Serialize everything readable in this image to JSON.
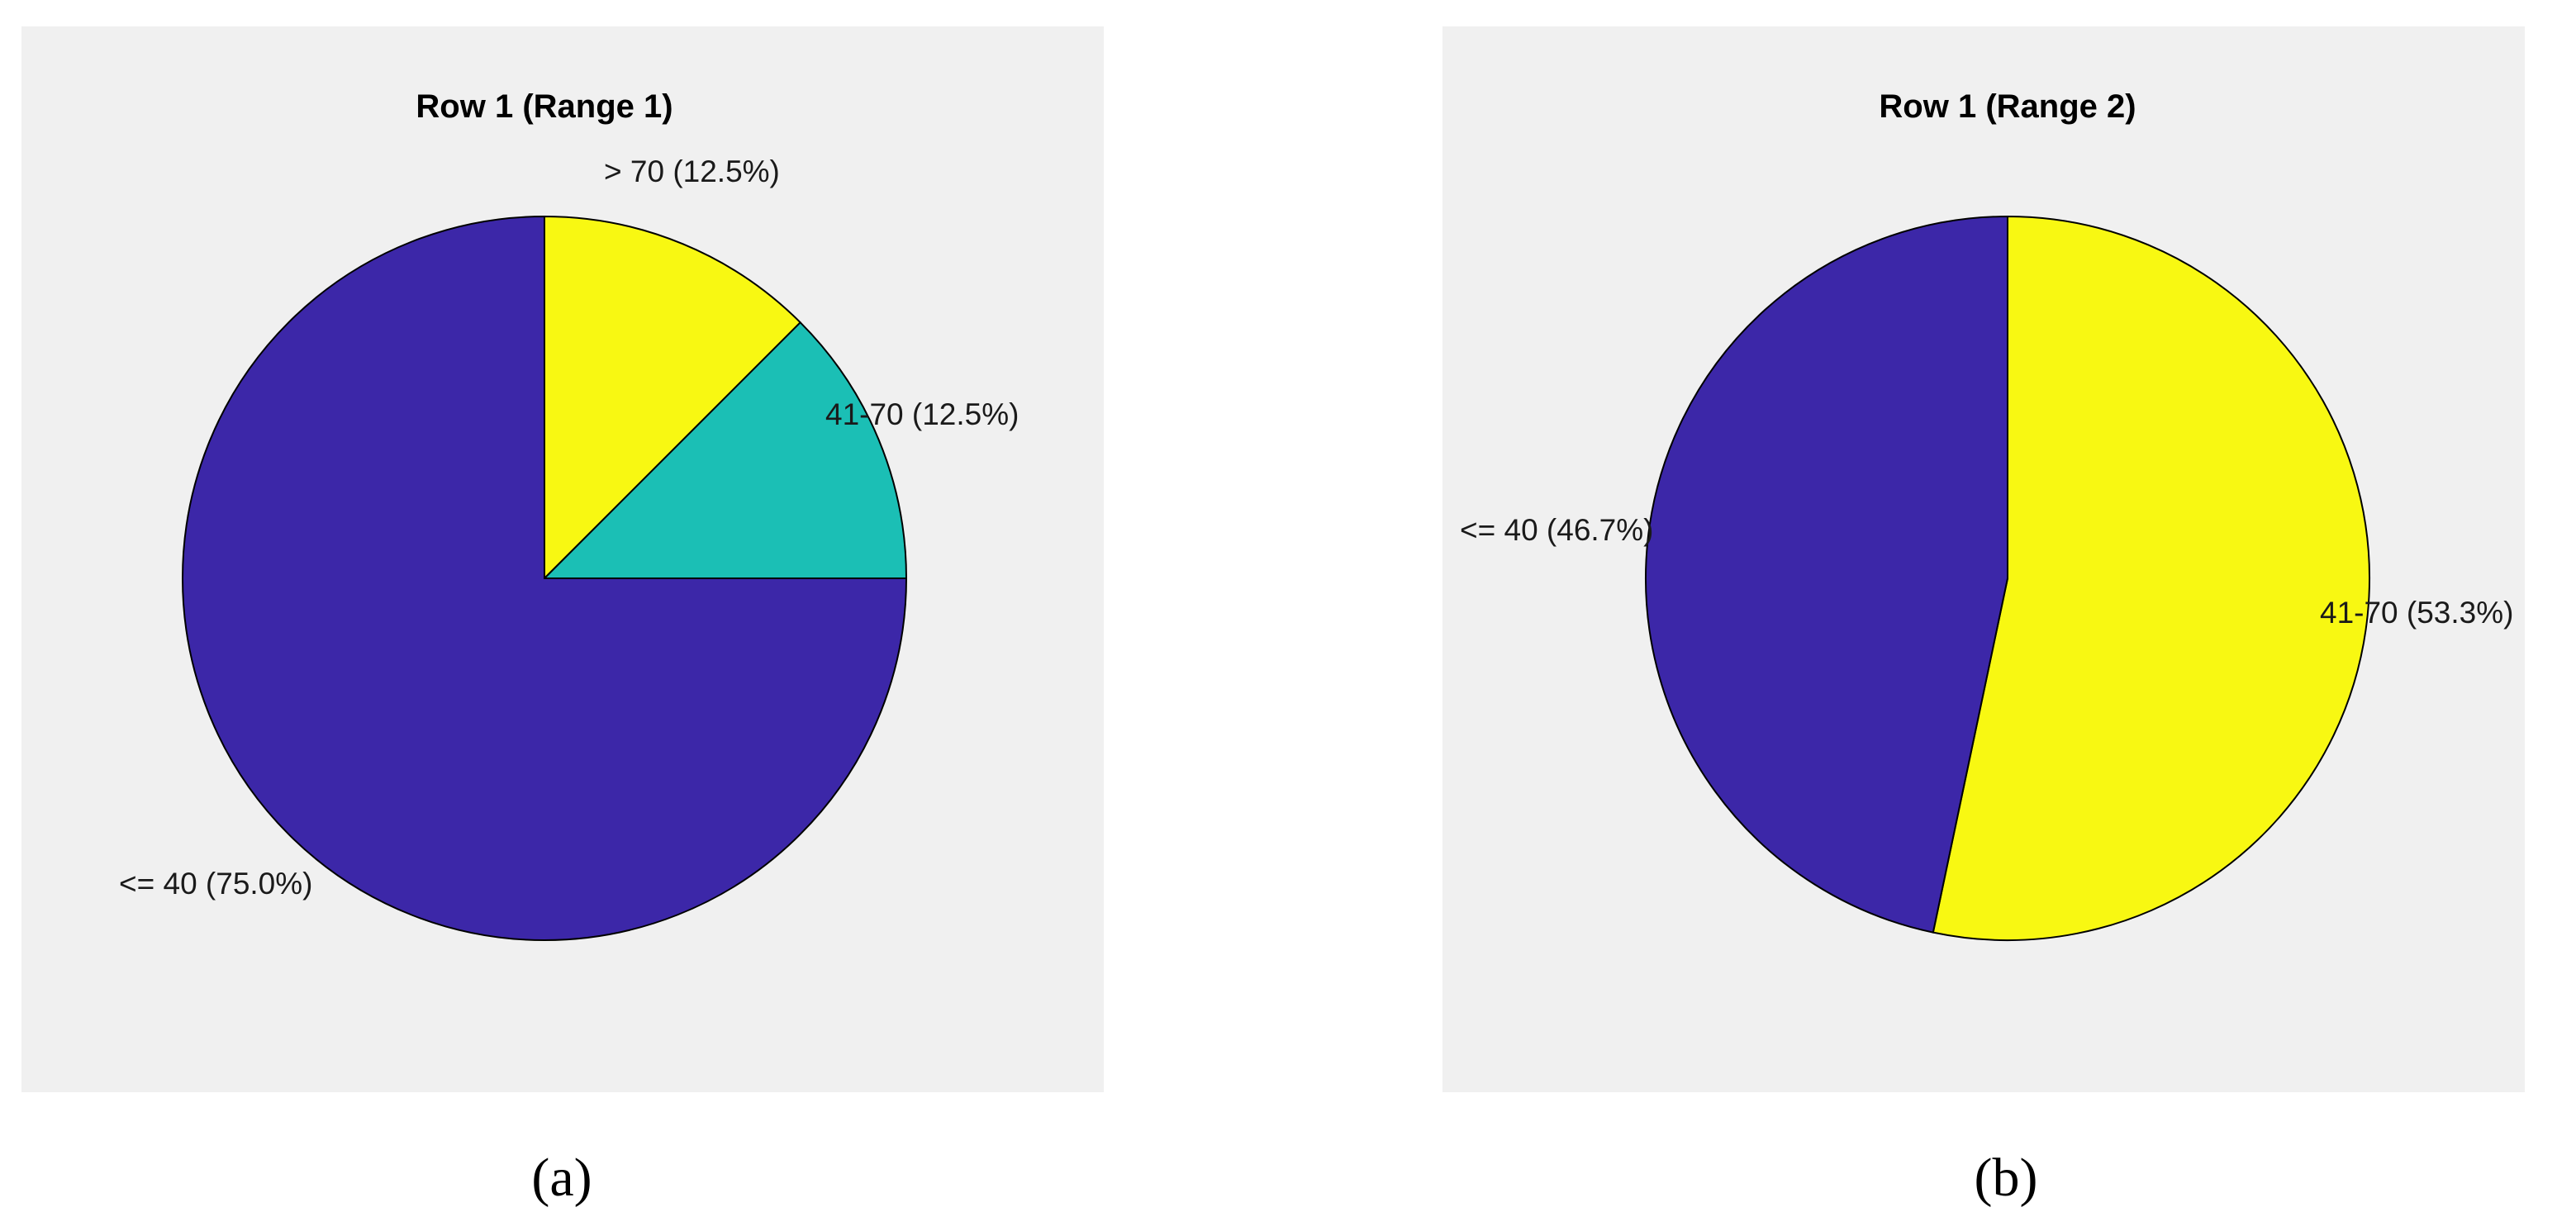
{
  "chart_data": [
    {
      "type": "pie",
      "title": "Row 1 (Range 1)",
      "panel_caption": "(a)",
      "slices": [
        {
          "label": "> 70 (12.5%)",
          "value": 12.5,
          "color": "#f8f812"
        },
        {
          "label": "41-70 (12.5%)",
          "value": 12.5,
          "color": "#1bbfb5"
        },
        {
          "label": "<= 40 (75.0%)",
          "value": 75.0,
          "color": "#3c27a8"
        }
      ]
    },
    {
      "type": "pie",
      "title": "Row 1 (Range 2)",
      "panel_caption": "(b)",
      "slices": [
        {
          "label": "41-70 (53.3%)",
          "value": 53.3,
          "color": "#f8f812"
        },
        {
          "label": "<= 40 (46.7%)",
          "value": 46.7,
          "color": "#3c27a8"
        }
      ]
    }
  ],
  "colors": {
    "panel_background": "#f0f0f0",
    "slice_edge": "#000000"
  }
}
